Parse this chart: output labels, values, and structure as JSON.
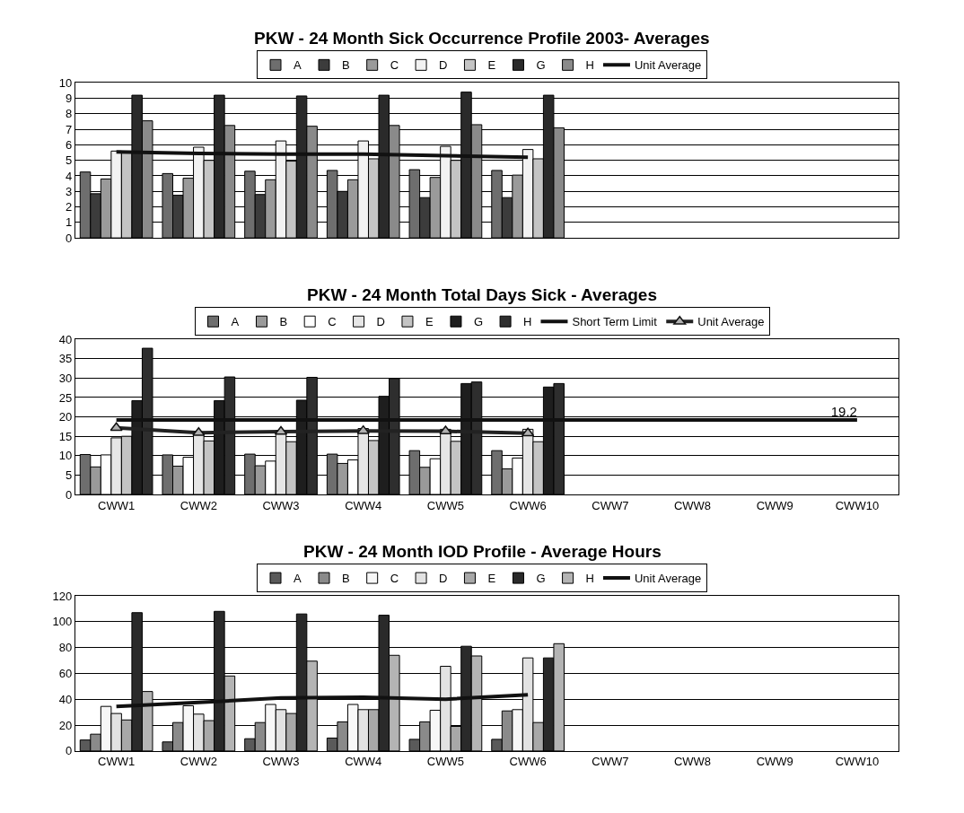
{
  "chart_data": [
    {
      "type": "bar",
      "title": "PKW - 24 Month Sick Occurrence Profile 2003- Averages",
      "categories": [
        null,
        null,
        null,
        null,
        null,
        null,
        null,
        null,
        null,
        null
      ],
      "tick_labels": "y",
      "ylim": [
        0,
        10
      ],
      "yticks": [
        0,
        1,
        2,
        3,
        4,
        5,
        6,
        7,
        8,
        9,
        10
      ],
      "grid": "y",
      "legend": "top",
      "series": [
        {
          "name": "A",
          "color": "#6e6e6e",
          "values": [
            4.25,
            4.15,
            4.3,
            4.35,
            4.4,
            4.35,
            null,
            null,
            null,
            null
          ]
        },
        {
          "name": "B",
          "color": "#3c3c3c",
          "values": [
            2.85,
            2.75,
            2.8,
            3.0,
            2.6,
            2.6,
            null,
            null,
            null,
            null
          ]
        },
        {
          "name": "C",
          "color": "#9a9a9a",
          "values": [
            3.8,
            3.85,
            3.75,
            3.75,
            3.9,
            4.05,
            null,
            null,
            null,
            null
          ]
        },
        {
          "name": "D",
          "color": "#f2f2f2",
          "values": [
            5.6,
            5.85,
            6.25,
            6.25,
            5.9,
            5.7,
            null,
            null,
            null,
            null
          ]
        },
        {
          "name": "E",
          "color": "#c4c4c4",
          "values": [
            5.5,
            5.0,
            4.95,
            5.1,
            5.0,
            5.1,
            null,
            null,
            null,
            null
          ]
        },
        {
          "name": "G",
          "color": "#2a2a2a",
          "values": [
            9.2,
            9.2,
            9.15,
            9.2,
            9.4,
            9.2,
            null,
            null,
            null,
            null
          ]
        },
        {
          "name": "H",
          "color": "#8a8a8a",
          "values": [
            7.55,
            7.25,
            7.2,
            7.25,
            7.3,
            7.1,
            null,
            null,
            null,
            null
          ]
        },
        {
          "name": "Unit Average",
          "type": "line",
          "color": "#111111",
          "values": [
            5.55,
            5.45,
            5.4,
            5.4,
            5.3,
            5.2,
            null,
            null,
            null,
            null
          ]
        }
      ]
    },
    {
      "type": "bar",
      "title": "PKW - 24 Month Total Days Sick - Averages",
      "categories": [
        "CWW1",
        "CWW2",
        "CWW3",
        "CWW4",
        "CWW5",
        "CWW6",
        "CWW7",
        "CWW8",
        "CWW9",
        "CWW10"
      ],
      "ylim": [
        0,
        40
      ],
      "yticks": [
        0,
        5,
        10,
        15,
        20,
        25,
        30,
        35,
        40
      ],
      "grid": "y",
      "legend": "top",
      "series": [
        {
          "name": "A",
          "color": "#6e6e6e",
          "values": [
            10.3,
            10.2,
            10.4,
            10.4,
            11.3,
            11.3,
            null,
            null,
            null,
            null
          ]
        },
        {
          "name": "B",
          "color": "#9a9a9a",
          "values": [
            7.1,
            7.3,
            7.4,
            8.0,
            7.0,
            6.6,
            null,
            null,
            null,
            null
          ]
        },
        {
          "name": "C",
          "color": "#ffffff",
          "values": [
            10.2,
            9.6,
            8.6,
            8.9,
            9.2,
            9.4,
            null,
            null,
            null,
            null
          ]
        },
        {
          "name": "D",
          "color": "#e6e6e6",
          "values": [
            14.6,
            16.0,
            16.5,
            17.0,
            16.8,
            16.8,
            null,
            null,
            null,
            null
          ]
        },
        {
          "name": "E",
          "color": "#c4c4c4",
          "values": [
            15.0,
            13.8,
            13.6,
            13.9,
            13.7,
            13.6,
            null,
            null,
            null,
            null
          ]
        },
        {
          "name": "G",
          "color": "#1e1e1e",
          "values": [
            24.2,
            24.2,
            24.3,
            25.3,
            28.6,
            27.7,
            null,
            null,
            null,
            null
          ]
        },
        {
          "name": "H",
          "color": "#2e2e2e",
          "values": [
            37.7,
            30.3,
            30.2,
            29.9,
            29.0,
            28.6,
            null,
            null,
            null,
            null
          ]
        },
        {
          "name": "Short Term Limit",
          "type": "line",
          "color": "#111111",
          "values": [
            19.2,
            19.2,
            19.2,
            19.2,
            19.2,
            19.2,
            19.2,
            19.2,
            19.2,
            19.2
          ],
          "value_labels": [
            null,
            null,
            null,
            null,
            null,
            null,
            null,
            null,
            null,
            "19.2"
          ]
        },
        {
          "name": "Unit Average",
          "type": "line",
          "color": "#222222",
          "marker": "triangle",
          "values": [
            17.2,
            15.9,
            16.2,
            16.4,
            16.3,
            15.8,
            null,
            null,
            null,
            null
          ]
        }
      ]
    },
    {
      "type": "bar",
      "title": "PKW - 24 Month IOD Profile - Average Hours",
      "categories": [
        "CWW1",
        "CWW2",
        "CWW3",
        "CWW4",
        "CWW5",
        "CWW6",
        "CWW7",
        "CWW8",
        "CWW9",
        "CWW10"
      ],
      "ylim": [
        0,
        120
      ],
      "yticks": [
        0,
        20,
        40,
        60,
        80,
        100,
        120
      ],
      "grid": "y",
      "legend": "top",
      "series": [
        {
          "name": "A",
          "color": "#5a5a5a",
          "values": [
            8.5,
            7,
            9.5,
            10,
            9,
            9,
            null,
            null,
            null,
            null
          ]
        },
        {
          "name": "B",
          "color": "#8a8a8a",
          "values": [
            13,
            22,
            22,
            22.5,
            22.5,
            31,
            null,
            null,
            null,
            null
          ]
        },
        {
          "name": "C",
          "color": "#f7f7f7",
          "values": [
            34.5,
            35,
            36,
            36,
            31.5,
            32,
            null,
            null,
            null,
            null
          ]
        },
        {
          "name": "D",
          "color": "#e2e2e2",
          "values": [
            29,
            28.5,
            32,
            32,
            65.5,
            72,
            null,
            null,
            null,
            null
          ]
        },
        {
          "name": "E",
          "color": "#a8a8a8",
          "values": [
            24,
            23.5,
            29,
            32,
            19,
            22,
            null,
            null,
            null,
            null
          ]
        },
        {
          "name": "G",
          "color": "#2a2a2a",
          "values": [
            107,
            108,
            106,
            105,
            81,
            72,
            null,
            null,
            null,
            null
          ]
        },
        {
          "name": "H",
          "color": "#b4b4b4",
          "values": [
            46,
            58,
            69.5,
            74,
            73.5,
            83,
            null,
            null,
            null,
            null
          ]
        },
        {
          "name": "Unit Average",
          "type": "line",
          "color": "#111111",
          "values": [
            34.5,
            37.5,
            41,
            41.5,
            40,
            43.5,
            null,
            null,
            null,
            null
          ]
        }
      ]
    }
  ]
}
